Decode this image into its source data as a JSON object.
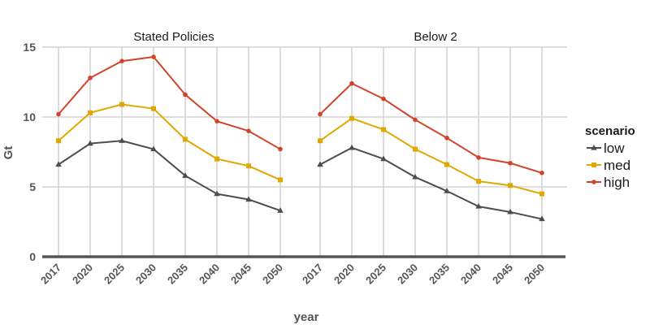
{
  "chart_data": {
    "type": "line",
    "xlabel": "year",
    "ylabel": "Gt",
    "ylim": [
      0,
      15
    ],
    "yticks": [
      0,
      5,
      10,
      15
    ],
    "categories": [
      "2017",
      "2020",
      "2025",
      "2030",
      "2035",
      "2040",
      "2045",
      "2050"
    ],
    "grid": true,
    "legend": {
      "title": "scenario",
      "position": "right",
      "entries": [
        {
          "name": "low",
          "color": "#4d4d4d",
          "marker": "triangle"
        },
        {
          "name": "med",
          "color": "#e0a800",
          "marker": "square"
        },
        {
          "name": "high",
          "color": "#d1442a",
          "marker": "circle"
        }
      ]
    },
    "facets": [
      {
        "title": "Stated Policies",
        "series": [
          {
            "name": "low",
            "values": [
              6.6,
              8.1,
              8.3,
              7.7,
              5.8,
              4.5,
              4.1,
              3.3
            ]
          },
          {
            "name": "med",
            "values": [
              8.3,
              10.3,
              10.9,
              10.6,
              8.4,
              7.0,
              6.5,
              5.5
            ]
          },
          {
            "name": "high",
            "values": [
              10.2,
              12.8,
              14.0,
              14.3,
              11.6,
              9.7,
              9.0,
              7.7
            ]
          }
        ]
      },
      {
        "title": "Below 2",
        "series": [
          {
            "name": "low",
            "values": [
              6.6,
              7.8,
              7.0,
              5.7,
              4.7,
              3.6,
              3.2,
              2.7
            ]
          },
          {
            "name": "med",
            "values": [
              8.3,
              9.9,
              9.1,
              7.7,
              6.6,
              5.4,
              5.1,
              4.5
            ]
          },
          {
            "name": "high",
            "values": [
              10.2,
              12.4,
              11.3,
              9.8,
              8.5,
              7.1,
              6.7,
              6.0
            ]
          }
        ]
      }
    ]
  }
}
